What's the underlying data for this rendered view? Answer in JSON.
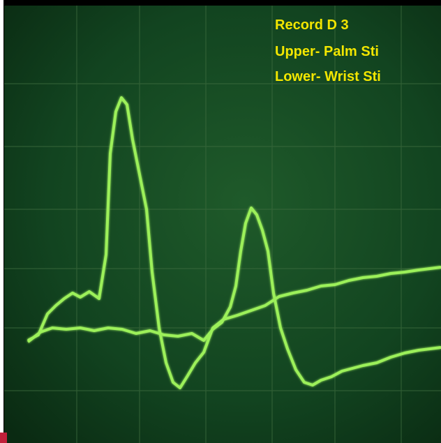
{
  "caption": {
    "lines": [
      "Record D 3",
      "Upper- Palm Sti",
      "Lower- Wrist Sti"
    ]
  }
}
